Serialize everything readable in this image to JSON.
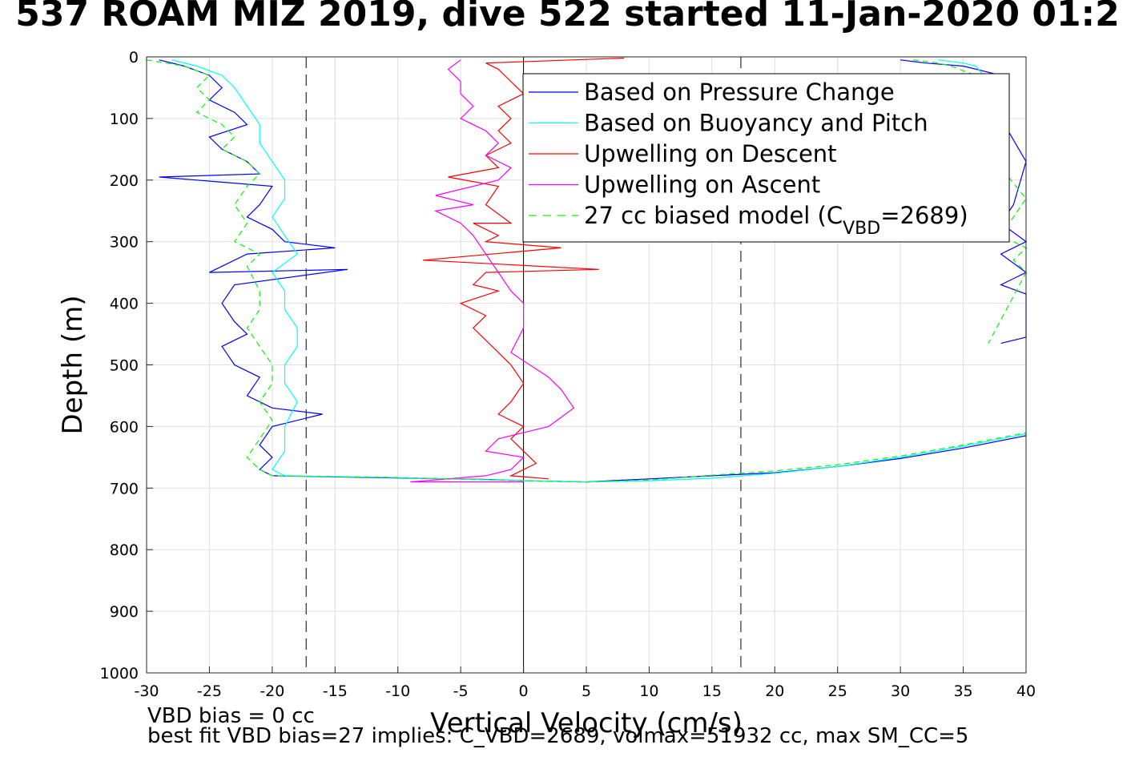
{
  "chart_data": {
    "type": "line",
    "title": "537 ROAM MIZ 2019, dive 522 started 11-Jan-2020 01:2",
    "xlabel": "Vertical Velocity (cm/s)",
    "ylabel": "Depth (m)",
    "xlim": [
      -30,
      40
    ],
    "ylim": [
      0,
      1000
    ],
    "y_reversed": true,
    "grid": true,
    "legend_position": "top-right",
    "x_ticks": [
      -30,
      -25,
      -20,
      -15,
      -10,
      -5,
      0,
      5,
      10,
      15,
      20,
      25,
      30,
      35,
      40
    ],
    "y_ticks": [
      0,
      100,
      200,
      300,
      400,
      500,
      600,
      700,
      800,
      900,
      1000
    ],
    "reference_lines": {
      "vertical_dashed_at": [
        -17.3,
        17.3
      ],
      "vertical_solid_at": [
        0
      ]
    },
    "legend_entries": [
      "Based on Pressure Change",
      "Based on Buoyancy and Pitch",
      "Upwelling on Descent",
      "Upwelling on Ascent",
      "27 cc biased model (C",
      "VBD",
      "=2689)"
    ],
    "series": [
      {
        "name": "Based on Pressure Change",
        "color": "#0000ff",
        "style": "solid",
        "descent": [
          [
            -29,
            5
          ],
          [
            -27,
            15
          ],
          [
            -25,
            30
          ],
          [
            -24,
            50
          ],
          [
            -25,
            70
          ],
          [
            -23,
            90
          ],
          [
            -22,
            110
          ],
          [
            -25,
            130
          ],
          [
            -24,
            150
          ],
          [
            -22,
            170
          ],
          [
            -21,
            190
          ],
          [
            -29,
            195
          ],
          [
            -20,
            210
          ],
          [
            -21,
            240
          ],
          [
            -22,
            260
          ],
          [
            -20,
            280
          ],
          [
            -19,
            300
          ],
          [
            -15,
            310
          ],
          [
            -22,
            320
          ],
          [
            -25,
            350
          ],
          [
            -14,
            345
          ],
          [
            -23,
            370
          ],
          [
            -24,
            400
          ],
          [
            -23,
            430
          ],
          [
            -22,
            450
          ],
          [
            -24,
            470
          ],
          [
            -23,
            500
          ],
          [
            -21,
            520
          ],
          [
            -22,
            550
          ],
          [
            -20,
            570
          ],
          [
            -16,
            580
          ],
          [
            -20,
            600
          ],
          [
            -21,
            630
          ],
          [
            -20,
            650
          ],
          [
            -21,
            670
          ],
          [
            -20,
            680
          ],
          [
            -12,
            683
          ],
          [
            -3,
            686
          ],
          [
            0,
            688
          ],
          [
            5,
            690
          ],
          [
            10,
            685
          ],
          [
            15,
            680
          ],
          [
            20,
            675
          ],
          [
            25,
            665
          ],
          [
            30,
            652
          ],
          [
            35,
            635
          ],
          [
            40,
            615
          ]
        ],
        "ascent": [
          [
            30,
            5
          ],
          [
            32,
            10
          ],
          [
            35,
            15
          ],
          [
            38,
            30
          ],
          [
            38,
            100
          ],
          [
            40,
            170
          ],
          [
            39,
            240
          ],
          [
            38,
            270
          ],
          [
            40,
            300
          ],
          [
            38,
            320
          ],
          [
            40,
            350
          ],
          [
            38,
            370
          ],
          [
            40,
            385
          ],
          [
            40,
            455
          ],
          [
            38,
            465
          ]
        ]
      },
      {
        "name": "Based on Buoyancy and Pitch",
        "color": "#00ffff",
        "style": "solid",
        "descent": [
          [
            -28,
            5
          ],
          [
            -26,
            15
          ],
          [
            -24,
            30
          ],
          [
            -23,
            50
          ],
          [
            -22,
            80
          ],
          [
            -21,
            110
          ],
          [
            -21,
            140
          ],
          [
            -20,
            170
          ],
          [
            -19,
            200
          ],
          [
            -19,
            230
          ],
          [
            -20,
            260
          ],
          [
            -19,
            290
          ],
          [
            -18,
            320
          ],
          [
            -20,
            350
          ],
          [
            -19,
            380
          ],
          [
            -19,
            410
          ],
          [
            -18,
            440
          ],
          [
            -18,
            470
          ],
          [
            -19,
            500
          ],
          [
            -19,
            530
          ],
          [
            -18,
            560
          ],
          [
            -19,
            600
          ],
          [
            -19,
            640
          ],
          [
            -20,
            670
          ],
          [
            -19,
            680
          ],
          [
            -10,
            683
          ],
          [
            0,
            688
          ],
          [
            5,
            690
          ],
          [
            10,
            688
          ],
          [
            15,
            684
          ],
          [
            20,
            676
          ],
          [
            25,
            665
          ],
          [
            30,
            650
          ],
          [
            35,
            632
          ],
          [
            40,
            612
          ]
        ],
        "ascent": [
          [
            33,
            5
          ],
          [
            35,
            10
          ],
          [
            36,
            15
          ],
          [
            37,
            40
          ],
          [
            37,
            80
          ],
          [
            38,
            115
          ]
        ]
      },
      {
        "name": "Upwelling on Descent",
        "color": "#ff0000",
        "style": "solid",
        "data": [
          [
            8,
            2
          ],
          [
            -3,
            10
          ],
          [
            -2,
            20
          ],
          [
            -1,
            40
          ],
          [
            0,
            60
          ],
          [
            -2,
            80
          ],
          [
            -1,
            100
          ],
          [
            -2,
            120
          ],
          [
            -1,
            140
          ],
          [
            -3,
            160
          ],
          [
            -2,
            180
          ],
          [
            -6,
            195
          ],
          [
            -2,
            210
          ],
          [
            -3,
            240
          ],
          [
            -1,
            270
          ],
          [
            -4,
            270
          ],
          [
            -2,
            290
          ],
          [
            -3,
            300
          ],
          [
            3,
            310
          ],
          [
            -8,
            330
          ],
          [
            6,
            345
          ],
          [
            -3,
            350
          ],
          [
            -4,
            370
          ],
          [
            -2,
            380
          ],
          [
            -5,
            400
          ],
          [
            -3,
            420
          ],
          [
            -4,
            440
          ],
          [
            -3,
            460
          ],
          [
            -2,
            480
          ],
          [
            -1,
            500
          ],
          [
            0,
            530
          ],
          [
            -1,
            560
          ],
          [
            -2,
            580
          ],
          [
            0,
            600
          ],
          [
            -1,
            620
          ],
          [
            0,
            640
          ],
          [
            1,
            660
          ],
          [
            -1,
            680
          ],
          [
            2,
            685
          ]
        ]
      },
      {
        "name": "Upwelling on Ascent",
        "color": "#ff00ff",
        "style": "solid",
        "data": [
          [
            -5,
            5
          ],
          [
            -6,
            20
          ],
          [
            -5,
            40
          ],
          [
            -5,
            60
          ],
          [
            -4,
            80
          ],
          [
            -5,
            100
          ],
          [
            -3,
            120
          ],
          [
            -2,
            140
          ],
          [
            -3,
            160
          ],
          [
            -1,
            180
          ],
          [
            -2,
            200
          ],
          [
            -7,
            225
          ],
          [
            -4,
            240
          ],
          [
            -7,
            250
          ],
          [
            -5,
            270
          ],
          [
            -4,
            290
          ],
          [
            -3,
            320
          ],
          [
            -2,
            350
          ],
          [
            -1,
            380
          ],
          [
            0,
            400
          ],
          [
            0,
            440
          ],
          [
            -1,
            480
          ],
          [
            2,
            520
          ],
          [
            3,
            540
          ],
          [
            4,
            570
          ],
          [
            2,
            600
          ],
          [
            0,
            610
          ],
          [
            -2,
            620
          ],
          [
            -3,
            640
          ],
          [
            0,
            650
          ],
          [
            -1,
            670
          ],
          [
            -3,
            680
          ],
          [
            -9,
            690
          ],
          [
            0,
            690
          ]
        ]
      },
      {
        "name": "27 cc biased model (C_VBD=2689)",
        "color": "#00ff00",
        "style": "dashed",
        "descent": [
          [
            -30,
            5
          ],
          [
            -27,
            15
          ],
          [
            -25,
            30
          ],
          [
            -26,
            50
          ],
          [
            -25,
            70
          ],
          [
            -26,
            90
          ],
          [
            -24,
            110
          ],
          [
            -23,
            130
          ],
          [
            -24,
            150
          ],
          [
            -22,
            170
          ],
          [
            -21,
            190
          ],
          [
            -22,
            210
          ],
          [
            -23,
            240
          ],
          [
            -22,
            270
          ],
          [
            -23,
            300
          ],
          [
            -21,
            320
          ],
          [
            -22,
            340
          ],
          [
            -21,
            380
          ],
          [
            -21,
            410
          ],
          [
            -22,
            440
          ],
          [
            -21,
            470
          ],
          [
            -20,
            500
          ],
          [
            -20,
            530
          ],
          [
            -21,
            560
          ],
          [
            -20,
            590
          ],
          [
            -21,
            620
          ],
          [
            -22,
            650
          ],
          [
            -21,
            670
          ],
          [
            -20,
            680
          ],
          [
            -10,
            683
          ],
          [
            0,
            688
          ],
          [
            5,
            690
          ],
          [
            10,
            687
          ],
          [
            15,
            679
          ],
          [
            20,
            672
          ],
          [
            25,
            662
          ],
          [
            30,
            648
          ],
          [
            35,
            630
          ],
          [
            40,
            610
          ]
        ],
        "ascent": [
          [
            31,
            5
          ],
          [
            33,
            10
          ],
          [
            34,
            15
          ],
          [
            36,
            30
          ],
          [
            38,
            180
          ],
          [
            40,
            230
          ],
          [
            39,
            260
          ],
          [
            38,
            290
          ],
          [
            40,
            310
          ],
          [
            39,
            330
          ],
          [
            40,
            350
          ],
          [
            37,
            465
          ]
        ]
      }
    ]
  },
  "footer": {
    "line1": "VBD bias = 0 cc",
    "line2": "best fit VBD bias=27 implies: C_VBD=2689, volmax=51932 cc, max SM_CC=5"
  }
}
